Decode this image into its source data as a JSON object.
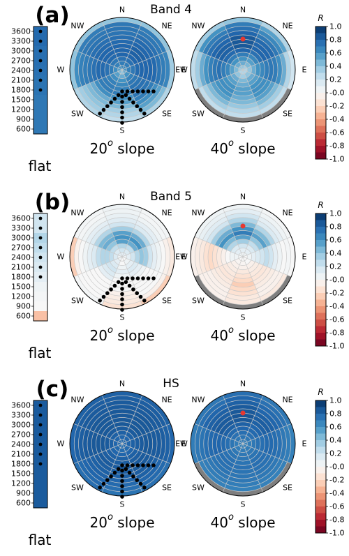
{
  "colorbar": {
    "title": "R",
    "ticks": [
      "1.0",
      "0.8",
      "0.6",
      "0.4",
      "0.2",
      "-0.0",
      "-0.2",
      "-0.4",
      "-0.6",
      "-0.8",
      "-1.0"
    ]
  },
  "flat_ticks": [
    "3600",
    "3300",
    "3000",
    "2700",
    "2400",
    "2100",
    "1800",
    "1500",
    "1200",
    "900",
    "600"
  ],
  "directions": [
    "N",
    "NE",
    "E",
    "SE",
    "S",
    "SW",
    "W",
    "NW"
  ],
  "colors": {
    "grey": "#7f7f7f",
    "marker_red": "#e8382f",
    "dot": "#000000"
  },
  "chart_data": [
    {
      "type": "heatmap",
      "letter": "(a)",
      "title": "Band 4",
      "flat_label": "flat",
      "slope20": {
        "label": "20",
        "label_suffix": " slope",
        "west_label": "W",
        "values": [
          [
            0.65,
            0.7,
            0.75,
            0.8,
            0.8,
            0.8,
            0.78,
            0.76,
            0.74,
            0.74,
            0.72,
            0.4
          ],
          [
            0.65,
            0.7,
            0.75,
            0.8,
            0.82,
            0.82,
            0.8,
            0.78,
            0.75,
            0.72,
            0.7,
            0.4
          ],
          [
            0.6,
            0.68,
            0.72,
            0.78,
            0.8,
            0.8,
            0.8,
            0.78,
            0.74,
            0.7,
            0.66,
            0.35
          ],
          [
            0.5,
            0.6,
            0.68,
            0.72,
            0.74,
            0.75,
            0.74,
            0.7,
            0.62,
            0.55,
            0.45,
            0.3
          ],
          [
            0.4,
            0.5,
            0.6,
            0.65,
            0.68,
            0.7,
            0.62,
            0.55,
            0.45,
            0.35,
            0.3,
            0.25
          ],
          [
            0.45,
            0.55,
            0.62,
            0.68,
            0.7,
            0.7,
            0.62,
            0.5,
            0.45,
            0.4,
            0.35,
            0.3
          ],
          [
            0.55,
            0.62,
            0.7,
            0.75,
            0.78,
            0.78,
            0.75,
            0.72,
            0.7,
            0.68,
            0.62,
            0.4
          ],
          [
            0.6,
            0.68,
            0.72,
            0.78,
            0.8,
            0.8,
            0.78,
            0.76,
            0.74,
            0.72,
            0.7,
            0.4
          ]
        ]
      },
      "slope40": {
        "label": "40",
        "label_suffix": " slope",
        "west_label": "EW",
        "values": [
          [
            0.4,
            0.5,
            0.6,
            0.7,
            0.8,
            0.85,
            0.85,
            0.85,
            0.8,
            0.75,
            0.7,
            0.4
          ],
          [
            0.35,
            0.45,
            0.55,
            0.65,
            0.75,
            0.8,
            0.8,
            0.78,
            0.72,
            0.65,
            0.55,
            0.3
          ],
          [
            0.3,
            0.4,
            0.5,
            0.6,
            0.65,
            0.7,
            0.72,
            0.7,
            0.62,
            0.5,
            0.3,
            0.2
          ],
          [
            0.3,
            0.4,
            0.5,
            0.55,
            0.6,
            0.62,
            0.6,
            0.55,
            0.45,
            0.35,
            0.25,
            null
          ],
          [
            0.3,
            0.35,
            0.45,
            0.5,
            0.55,
            0.55,
            0.5,
            0.45,
            0.38,
            0.3,
            0.25,
            null
          ],
          [
            0.3,
            0.4,
            0.5,
            0.55,
            0.6,
            0.62,
            0.6,
            0.55,
            0.45,
            0.35,
            0.25,
            null
          ],
          [
            0.35,
            0.45,
            0.55,
            0.65,
            0.7,
            0.75,
            0.72,
            0.68,
            0.6,
            0.5,
            0.35,
            0.25
          ],
          [
            0.4,
            0.5,
            0.6,
            0.7,
            0.78,
            0.82,
            0.82,
            0.8,
            0.75,
            0.7,
            0.6,
            0.35
          ]
        ]
      },
      "flat": [
        0.78,
        0.78,
        0.76,
        0.76,
        0.75,
        0.74,
        0.74,
        0.72,
        0.72,
        0.72,
        0.72
      ]
    },
    {
      "type": "heatmap",
      "letter": "(b)",
      "title": "Band 5",
      "flat_label": "flat",
      "slope20": {
        "label": "20",
        "label_suffix": " slope",
        "west_label": "W",
        "values": [
          [
            0.1,
            0.2,
            0.3,
            0.55,
            0.6,
            0.55,
            0.35,
            0.2,
            0.12,
            0.08,
            0.05,
            0.05
          ],
          [
            0.1,
            0.15,
            0.25,
            0.5,
            0.6,
            0.5,
            0.3,
            0.15,
            0.1,
            0.05,
            0.02,
            0.02
          ],
          [
            0.05,
            0.1,
            0.2,
            0.3,
            0.4,
            0.35,
            0.2,
            0.1,
            0.05,
            0.0,
            -0.05,
            -0.1
          ],
          [
            0.0,
            0.05,
            0.1,
            0.15,
            0.1,
            0.05,
            0.0,
            0.0,
            0.0,
            0.0,
            -0.05,
            -0.25
          ],
          [
            0.0,
            0.0,
            0.05,
            0.1,
            0.05,
            0.0,
            0.0,
            0.0,
            -0.05,
            -0.08,
            -0.1,
            -0.15
          ],
          [
            0.05,
            0.1,
            0.15,
            0.2,
            0.15,
            0.1,
            0.0,
            0.0,
            0.0,
            0.0,
            0.0,
            0.02
          ],
          [
            0.05,
            0.15,
            0.25,
            0.3,
            0.3,
            0.25,
            0.15,
            0.1,
            0.05,
            0.0,
            -0.05,
            -0.25
          ],
          [
            0.1,
            0.15,
            0.25,
            0.4,
            0.5,
            0.45,
            0.3,
            0.15,
            0.1,
            0.05,
            0.02,
            0.02
          ]
        ]
      },
      "slope40": {
        "label": "40",
        "label_suffix": " slope",
        "west_label": "EW",
        "values": [
          [
            0.05,
            0.1,
            0.2,
            0.35,
            0.55,
            0.7,
            0.6,
            0.45,
            0.3,
            0.2,
            0.1,
            0.05
          ],
          [
            0.05,
            0.1,
            0.15,
            0.25,
            0.4,
            0.55,
            0.45,
            0.3,
            0.15,
            0.1,
            0.05,
            0.02
          ],
          [
            0.0,
            0.05,
            0.1,
            0.15,
            0.2,
            0.25,
            0.2,
            0.1,
            0.05,
            0.0,
            0.02,
            0.0
          ],
          [
            0.0,
            0.0,
            -0.05,
            -0.08,
            -0.1,
            -0.12,
            -0.1,
            -0.08,
            -0.05,
            -0.05,
            -0.1,
            null
          ],
          [
            0.0,
            -0.02,
            -0.05,
            -0.1,
            -0.15,
            -0.2,
            -0.25,
            -0.2,
            -0.15,
            -0.1,
            -0.1,
            null
          ],
          [
            0.0,
            -0.02,
            -0.05,
            -0.08,
            -0.1,
            -0.12,
            -0.1,
            -0.08,
            -0.05,
            -0.05,
            -0.05,
            null
          ],
          [
            0.02,
            0.05,
            0.05,
            0.0,
            -0.05,
            -0.1,
            -0.15,
            -0.2,
            -0.15,
            -0.1,
            -0.08,
            -0.05
          ],
          [
            0.05,
            0.1,
            0.15,
            0.3,
            0.45,
            0.6,
            0.5,
            0.35,
            0.2,
            0.12,
            0.08,
            0.05
          ]
        ]
      },
      "flat": [
        0.2,
        0.2,
        0.3,
        0.25,
        0.2,
        0.15,
        0.1,
        0.05,
        0.02,
        0.0,
        -0.3
      ]
    },
    {
      "type": "heatmap",
      "letter": "(c)",
      "title": "HS",
      "flat_label": "flat",
      "slope20": {
        "label": "20",
        "label_suffix": " slope",
        "west_label": "W",
        "values": [
          [
            0.78,
            0.8,
            0.82,
            0.84,
            0.85,
            0.85,
            0.85,
            0.85,
            0.84,
            0.84,
            0.83,
            0.82
          ],
          [
            0.78,
            0.8,
            0.82,
            0.84,
            0.85,
            0.85,
            0.85,
            0.85,
            0.84,
            0.84,
            0.83,
            0.82
          ],
          [
            0.78,
            0.8,
            0.82,
            0.83,
            0.84,
            0.85,
            0.85,
            0.84,
            0.84,
            0.83,
            0.82,
            0.8
          ],
          [
            0.76,
            0.78,
            0.8,
            0.82,
            0.83,
            0.84,
            0.84,
            0.83,
            0.82,
            0.8,
            0.78,
            0.75
          ],
          [
            0.75,
            0.77,
            0.8,
            0.82,
            0.83,
            0.84,
            0.83,
            0.82,
            0.8,
            0.78,
            0.76,
            0.74
          ],
          [
            0.76,
            0.78,
            0.8,
            0.82,
            0.83,
            0.84,
            0.83,
            0.82,
            0.81,
            0.8,
            0.78,
            0.76
          ],
          [
            0.78,
            0.8,
            0.82,
            0.84,
            0.85,
            0.85,
            0.85,
            0.84,
            0.84,
            0.83,
            0.82,
            0.8
          ],
          [
            0.78,
            0.8,
            0.82,
            0.84,
            0.85,
            0.85,
            0.85,
            0.85,
            0.84,
            0.84,
            0.83,
            0.82
          ]
        ]
      },
      "slope40": {
        "label": "40",
        "label_suffix": " slope",
        "west_label": "EW",
        "values": [
          [
            0.72,
            0.74,
            0.76,
            0.8,
            0.82,
            0.85,
            0.86,
            0.85,
            0.84,
            0.82,
            0.8,
            0.76
          ],
          [
            0.7,
            0.72,
            0.75,
            0.78,
            0.8,
            0.82,
            0.83,
            0.82,
            0.8,
            0.78,
            0.75,
            0.72
          ],
          [
            0.68,
            0.7,
            0.72,
            0.75,
            0.76,
            0.78,
            0.78,
            0.77,
            0.75,
            0.72,
            0.7,
            0.68
          ],
          [
            0.68,
            0.7,
            0.72,
            0.74,
            0.75,
            0.76,
            0.75,
            0.74,
            0.72,
            0.7,
            0.68,
            null
          ],
          [
            0.68,
            0.7,
            0.72,
            0.73,
            0.74,
            0.75,
            0.74,
            0.73,
            0.72,
            0.7,
            0.68,
            null
          ],
          [
            0.68,
            0.7,
            0.72,
            0.74,
            0.75,
            0.76,
            0.75,
            0.74,
            0.72,
            0.7,
            0.68,
            null
          ],
          [
            0.68,
            0.7,
            0.73,
            0.76,
            0.78,
            0.8,
            0.8,
            0.78,
            0.76,
            0.74,
            0.72,
            0.7
          ],
          [
            0.7,
            0.72,
            0.75,
            0.78,
            0.82,
            0.84,
            0.84,
            0.83,
            0.82,
            0.8,
            0.76,
            0.72
          ]
        ]
      },
      "flat": [
        0.84,
        0.84,
        0.84,
        0.84,
        0.84,
        0.84,
        0.84,
        0.84,
        0.84,
        0.84,
        0.84
      ]
    }
  ]
}
